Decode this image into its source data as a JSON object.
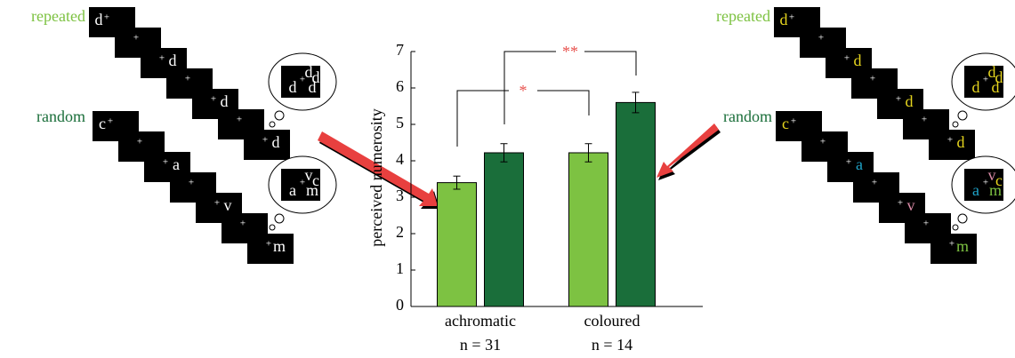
{
  "chart_data": {
    "type": "bar",
    "y_label": "perceived numerosity",
    "categories": [
      "achromatic",
      "coloured"
    ],
    "category_notes": [
      "n = 31",
      "n = 14"
    ],
    "series": [
      {
        "name": "repeated",
        "color": "#7dc242",
        "values": [
          3.4,
          4.22
        ],
        "errors": [
          0.18,
          0.25
        ]
      },
      {
        "name": "random",
        "color": "#1a6e3a",
        "values": [
          4.22,
          5.6
        ],
        "errors": [
          0.25,
          0.28
        ]
      }
    ],
    "ylim": [
      0,
      7
    ],
    "yticks": [
      0,
      1,
      2,
      3,
      4,
      5,
      6,
      7
    ],
    "annotations": [
      {
        "text": "*",
        "color": "#e8534f"
      },
      {
        "text": "**",
        "color": "#e8534f"
      }
    ]
  },
  "left_panel": {
    "repeated": {
      "letters": [
        "d",
        "d",
        "d",
        "d"
      ],
      "colors": [
        "#ffffff",
        "#ffffff",
        "#ffffff",
        "#ffffff"
      ],
      "bubble": [
        "d",
        "d",
        "d",
        "d"
      ],
      "bubble_colors": [
        "#ffffff",
        "#ffffff",
        "#ffffff",
        "#ffffff"
      ]
    },
    "random": {
      "letters": [
        "c",
        "a",
        "v",
        "m"
      ],
      "colors": [
        "#ffffff",
        "#ffffff",
        "#ffffff",
        "#ffffff"
      ],
      "bubble": [
        "v",
        "c",
        "a",
        "m"
      ],
      "bubble_colors": [
        "#ffffff",
        "#ffffff",
        "#ffffff",
        "#ffffff"
      ]
    }
  },
  "right_panel": {
    "repeated": {
      "letters": [
        "d",
        "d",
        "d",
        "d"
      ],
      "colors": [
        "#e6d51e",
        "#e6d51e",
        "#e6d51e",
        "#e6d51e"
      ],
      "bubble": [
        "d",
        "d",
        "d",
        "d"
      ],
      "bubble_colors": [
        "#e6d51e",
        "#e6d51e",
        "#e6d51e",
        "#e6d51e"
      ]
    },
    "random": {
      "letters": [
        "c",
        "a",
        "v",
        "m"
      ],
      "colors": [
        "#e6d51e",
        "#1fa3c8",
        "#d98aa6",
        "#7dc242"
      ],
      "bubble": [
        "v",
        "c",
        "a",
        "m"
      ],
      "bubble_colors": [
        "#d98aa6",
        "#e6d51e",
        "#1fa3c8",
        "#7dc242"
      ]
    }
  }
}
